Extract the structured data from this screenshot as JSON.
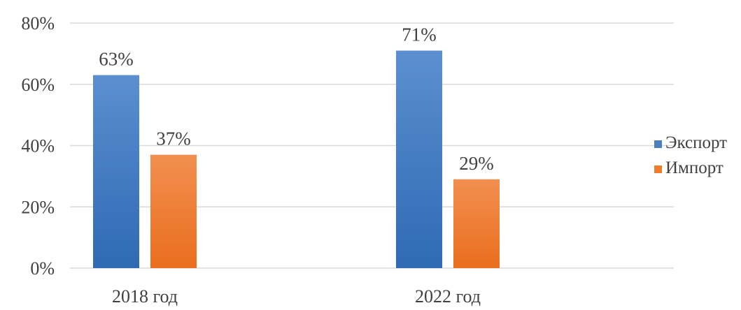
{
  "chart_data": {
    "type": "bar",
    "categories": [
      "2018 год",
      "2022 год"
    ],
    "series": [
      {
        "name": "Экспорт",
        "values": [
          63,
          71
        ],
        "value_labels": [
          "63%",
          "71%"
        ],
        "color": "#4a7ebf"
      },
      {
        "name": "Импорт",
        "values": [
          37,
          29
        ],
        "value_labels": [
          "37%",
          "29%"
        ],
        "color": "#ef7b2d"
      }
    ],
    "ylim": [
      0,
      80
    ],
    "yticks": [
      0,
      20,
      40,
      60,
      80
    ],
    "ytick_labels": [
      "0%",
      "20%",
      "40%",
      "60%",
      "80%"
    ],
    "grid": true,
    "legend_position": "right",
    "title": "",
    "xlabel": "",
    "ylabel": ""
  }
}
